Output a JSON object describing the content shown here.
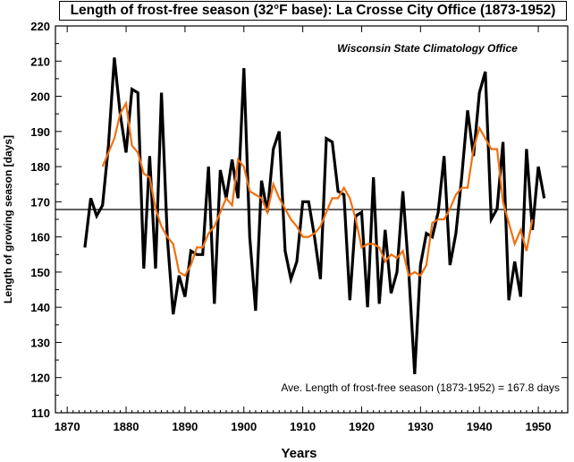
{
  "chart_data": {
    "type": "line",
    "title": "Length of frost-free season (32°F base): La Crosse City Office (1873-1952)",
    "subtitle": "Wisconsin State Climatology Office",
    "xlabel": "Years",
    "ylabel": "Length of growing season [days]",
    "xlim": [
      1868,
      1955
    ],
    "ylim": [
      110,
      220
    ],
    "x_ticks": [
      1870,
      1880,
      1890,
      1900,
      1910,
      1920,
      1930,
      1940,
      1950
    ],
    "y_ticks": [
      110,
      120,
      130,
      140,
      150,
      160,
      170,
      180,
      190,
      200,
      210,
      220
    ],
    "grid": false,
    "annotation": "Ave. Length of frost-free season (1873-1952) = 167.8 days",
    "average": 167.8,
    "colors": {
      "annual": "#000000",
      "smoothed": "#f07010",
      "average_line": "#000000"
    },
    "series": [
      {
        "role": "annual",
        "x": [
          1873,
          1874,
          1875,
          1876,
          1877,
          1878,
          1879,
          1880,
          1881,
          1882,
          1883,
          1884,
          1885,
          1886,
          1887,
          1888,
          1889,
          1890,
          1891,
          1892,
          1893,
          1894,
          1895,
          1896,
          1897,
          1898,
          1899,
          1900,
          1901,
          1902,
          1903,
          1904,
          1905,
          1906,
          1907,
          1908,
          1909,
          1910,
          1911,
          1912,
          1913,
          1914,
          1915,
          1916,
          1917,
          1918,
          1919,
          1920,
          1921,
          1922,
          1923,
          1924,
          1925,
          1926,
          1927,
          1928,
          1929,
          1930,
          1931,
          1932,
          1933,
          1934,
          1935,
          1936,
          1937,
          1938,
          1939,
          1940,
          1941,
          1942,
          1943,
          1944,
          1945,
          1946,
          1947,
          1948,
          1949,
          1950,
          1951
        ],
        "values": [
          157,
          171,
          166,
          169,
          186,
          211,
          195,
          184,
          202,
          201,
          151,
          183,
          151,
          201,
          160,
          138,
          149,
          143,
          156,
          155,
          155,
          180,
          141,
          179,
          171,
          182,
          171,
          208,
          160,
          139,
          176,
          167,
          185,
          190,
          156,
          148,
          153,
          170,
          170,
          160,
          148,
          188,
          187,
          173,
          172,
          142,
          166,
          167,
          140,
          177,
          141,
          162,
          144,
          150,
          173,
          150,
          121,
          152,
          161,
          160,
          167,
          183,
          152,
          161,
          177,
          196,
          183,
          201,
          207,
          165,
          168,
          187,
          142,
          153,
          143,
          185,
          162,
          180,
          171
        ]
      },
      {
        "role": "smoothed",
        "x": [
          1876,
          1877,
          1878,
          1879,
          1880,
          1881,
          1882,
          1883,
          1884,
          1885,
          1886,
          1887,
          1888,
          1889,
          1890,
          1891,
          1892,
          1893,
          1894,
          1895,
          1896,
          1897,
          1898,
          1899,
          1900,
          1901,
          1902,
          1903,
          1904,
          1905,
          1906,
          1907,
          1908,
          1909,
          1910,
          1911,
          1912,
          1913,
          1914,
          1915,
          1916,
          1917,
          1918,
          1919,
          1920,
          1921,
          1922,
          1923,
          1924,
          1925,
          1926,
          1927,
          1928,
          1929,
          1930,
          1931,
          1932,
          1933,
          1934,
          1935,
          1936,
          1937,
          1938,
          1939,
          1940,
          1941,
          1942,
          1943,
          1944,
          1945,
          1946,
          1947,
          1948,
          1949
        ],
        "values": [
          180,
          184,
          188,
          195,
          198,
          186,
          184,
          178,
          177,
          168,
          163,
          160,
          158,
          150,
          149,
          152,
          157,
          157,
          161,
          163,
          167,
          171,
          169,
          182,
          180,
          173,
          172,
          171,
          167,
          175,
          171,
          168,
          165,
          163,
          160,
          160,
          161,
          163,
          167,
          171,
          171,
          174,
          171,
          165,
          157,
          158,
          158,
          157,
          153,
          155,
          154,
          156,
          149,
          150,
          149,
          152,
          164,
          165,
          165,
          168,
          172,
          174,
          174,
          185,
          191,
          188,
          185,
          185,
          170,
          164,
          158,
          162,
          156,
          165
        ]
      }
    ]
  }
}
